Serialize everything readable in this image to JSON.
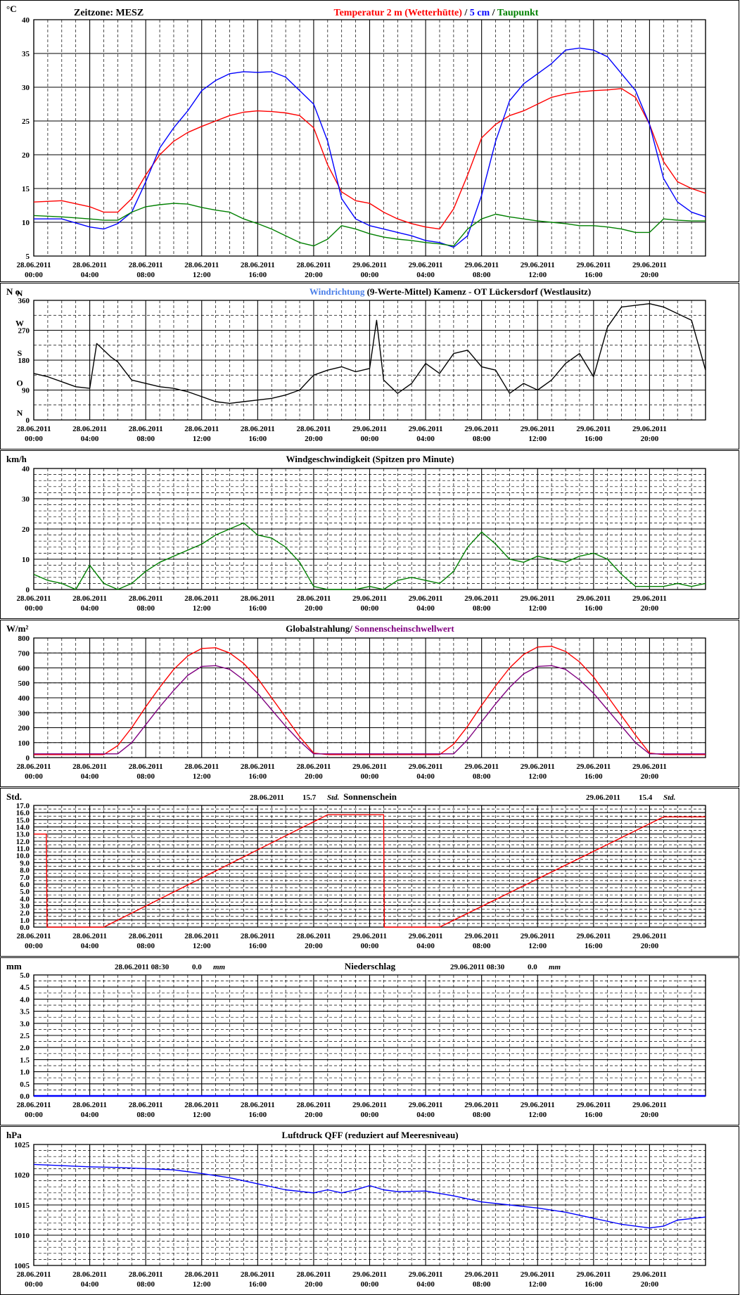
{
  "colors": {
    "red": "#ff0000",
    "blue": "#0000ff",
    "green": "#008000",
    "black": "#000000",
    "lightblue": "#4a7fe8",
    "purple": "#800080",
    "grid": "#000000"
  },
  "x_ticks": [
    [
      "28.06.2011",
      "00:00"
    ],
    [
      "28.06.2011",
      "04:00"
    ],
    [
      "28.06.2011",
      "08:00"
    ],
    [
      "28.06.2011",
      "12:00"
    ],
    [
      "28.06.2011",
      "16:00"
    ],
    [
      "28.06.2011",
      "20:00"
    ],
    [
      "29.06.2011",
      "00:00"
    ],
    [
      "29.06.2011",
      "04:00"
    ],
    [
      "29.06.2011",
      "08:00"
    ],
    [
      "29.06.2011",
      "12:00"
    ],
    [
      "29.06.2011",
      "16:00"
    ],
    [
      "29.06.2011",
      "20:00"
    ]
  ],
  "chart_data": [
    {
      "id": "temp",
      "type": "line",
      "unit_label": "°C",
      "zone_label": "Zeitzone: MESZ",
      "title_parts": [
        {
          "text": "Temperatur 2 m (Wetterhütte)",
          "color": "red"
        },
        {
          "text": "  /  ",
          "color": "black"
        },
        {
          "text": "5 cm",
          "color": "blue"
        },
        {
          "text": " / ",
          "color": "black"
        },
        {
          "text": "Taupunkt",
          "color": "green"
        }
      ],
      "ylim": [
        5,
        40
      ],
      "yticks": [
        5,
        10,
        15,
        20,
        25,
        30,
        35,
        40
      ],
      "minor": 1,
      "x_hours": [
        0,
        2,
        4,
        5,
        6,
        7,
        8,
        9,
        10,
        11,
        12,
        13,
        14,
        15,
        16,
        17,
        18,
        19,
        20,
        21,
        22,
        23,
        24,
        25,
        26,
        27,
        28,
        29,
        30,
        31,
        32,
        33,
        34,
        35,
        36,
        37,
        38,
        39,
        40,
        41,
        42,
        43,
        44,
        45,
        46,
        47,
        48
      ],
      "series": [
        {
          "color": "red",
          "values": [
            13.0,
            13.2,
            12.3,
            11.5,
            11.5,
            13.5,
            17.0,
            20.0,
            22.0,
            23.3,
            24.2,
            25.0,
            25.8,
            26.3,
            26.5,
            26.4,
            26.2,
            25.8,
            24.0,
            18.5,
            14.5,
            13.2,
            12.8,
            11.5,
            10.5,
            9.8,
            9.3,
            9.0,
            12.0,
            17.0,
            22.5,
            24.5,
            25.8,
            26.5,
            27.5,
            28.5,
            29.0,
            29.3,
            29.5,
            29.6,
            29.8,
            28.5,
            24.5,
            19.0,
            16.0,
            15.0,
            14.3
          ]
        },
        {
          "color": "blue",
          "values": [
            10.5,
            10.5,
            9.3,
            9.0,
            9.8,
            11.5,
            16.0,
            21.0,
            24.0,
            26.5,
            29.5,
            31.0,
            32.0,
            32.3,
            32.2,
            32.3,
            31.5,
            29.5,
            27.5,
            22.0,
            13.5,
            10.5,
            9.5,
            9.0,
            8.5,
            8.0,
            7.3,
            7.0,
            6.3,
            8.0,
            14.0,
            22.0,
            28.0,
            30.5,
            32.0,
            33.5,
            35.5,
            35.8,
            35.5,
            34.5,
            32.0,
            29.5,
            24.5,
            16.5,
            13.0,
            11.5,
            10.8
          ]
        },
        {
          "color": "green",
          "values": [
            11.0,
            10.8,
            10.5,
            10.3,
            10.3,
            11.5,
            12.3,
            12.6,
            12.8,
            12.7,
            12.2,
            11.8,
            11.5,
            10.5,
            9.8,
            9.0,
            8.0,
            7.0,
            6.5,
            7.5,
            9.5,
            9.0,
            8.3,
            7.8,
            7.5,
            7.3,
            7.0,
            6.8,
            6.5,
            9.0,
            10.5,
            11.2,
            10.8,
            10.5,
            10.2,
            10.0,
            9.8,
            9.5,
            9.5,
            9.3,
            9.0,
            8.5,
            8.5,
            10.5,
            10.3,
            10.2,
            10.2
          ]
        }
      ]
    },
    {
      "id": "wind_dir",
      "type": "line",
      "unit_label": "N o",
      "title_parts": [
        {
          "text": "Windrichtung",
          "color": "lightblue"
        },
        {
          "text": " (9-Werte-Mittel)",
          "color": "black"
        },
        {
          "text": "          Kamenz - OT Lückersdorf (Westlausitz)",
          "color": "black"
        }
      ],
      "ylim": [
        0,
        360
      ],
      "yticks": [
        0,
        90,
        180,
        270,
        360
      ],
      "minor": 2,
      "dir_letters": [
        {
          "label": "N",
          "value": 0
        },
        {
          "label": "O",
          "value": 90
        },
        {
          "label": "S",
          "value": 180
        },
        {
          "label": "W",
          "value": 270
        },
        {
          "label": "N",
          "value": 360
        }
      ],
      "x_hours": [
        0,
        1,
        2,
        3,
        4,
        4.5,
        5,
        5.5,
        6,
        7,
        8,
        9,
        10,
        11,
        12,
        13,
        14,
        15,
        16,
        17,
        18,
        19,
        20,
        21,
        22,
        23,
        24,
        24.5,
        25,
        26,
        27,
        28,
        29,
        30,
        31,
        32,
        33,
        34,
        35,
        36,
        37,
        38,
        39,
        40,
        41,
        42,
        43,
        44,
        45,
        46,
        47,
        48
      ],
      "series": [
        {
          "color": "black",
          "values": [
            140,
            130,
            115,
            100,
            95,
            230,
            210,
            190,
            175,
            120,
            110,
            100,
            95,
            85,
            70,
            55,
            50,
            55,
            60,
            65,
            75,
            90,
            135,
            150,
            160,
            145,
            155,
            300,
            120,
            80,
            110,
            170,
            140,
            200,
            210,
            160,
            150,
            80,
            110,
            90,
            120,
            170,
            200,
            130,
            280,
            340,
            345,
            350,
            340,
            320,
            300,
            150
          ]
        }
      ]
    },
    {
      "id": "wind_speed",
      "type": "line",
      "unit_label": "km/h",
      "title_parts": [
        {
          "text": "Windgeschwindigkeit (Spitzen pro Minute)",
          "color": "black"
        }
      ],
      "ylim": [
        0,
        40
      ],
      "yticks": [
        0,
        10,
        20,
        30,
        40
      ],
      "minor": 5,
      "x_hours": [
        0,
        1,
        2,
        3,
        4,
        5,
        6,
        7,
        8,
        9,
        10,
        11,
        12,
        13,
        14,
        15,
        16,
        17,
        18,
        19,
        20,
        21,
        22,
        23,
        24,
        25,
        26,
        27,
        28,
        29,
        30,
        31,
        32,
        33,
        34,
        35,
        36,
        37,
        38,
        39,
        40,
        41,
        42,
        43,
        44,
        45,
        46,
        47,
        48
      ],
      "series": [
        {
          "color": "green",
          "values": [
            5,
            3,
            2,
            0,
            8,
            2,
            0,
            2,
            6,
            9,
            11,
            13,
            15,
            18,
            20,
            22,
            18,
            17,
            14,
            9,
            1,
            0,
            0,
            0,
            1,
            0,
            3,
            4,
            3,
            2,
            6,
            14,
            19,
            15,
            10,
            9,
            11,
            10,
            9,
            11,
            12,
            10,
            5,
            1,
            1,
            1,
            2,
            1,
            2
          ]
        }
      ]
    },
    {
      "id": "radiation",
      "type": "line",
      "unit_label": "W/m²",
      "title_parts": [
        {
          "text": "Globalstrahlung/ ",
          "color": "black"
        },
        {
          "text": "Sonnenscheinschwellwert",
          "color": "purple"
        }
      ],
      "ylim": [
        0,
        800
      ],
      "yticks": [
        0,
        100,
        200,
        300,
        400,
        500,
        600,
        700,
        800
      ],
      "minor": 1,
      "x_hours": [
        0,
        5,
        6,
        7,
        8,
        9,
        10,
        11,
        12,
        13,
        14,
        15,
        16,
        17,
        18,
        19,
        20,
        21,
        22,
        24,
        29,
        30,
        31,
        32,
        33,
        34,
        35,
        36,
        37,
        38,
        39,
        40,
        41,
        42,
        43,
        44,
        45,
        46,
        48
      ],
      "series": [
        {
          "color": "red",
          "values": [
            20,
            20,
            80,
            200,
            340,
            470,
            590,
            680,
            730,
            735,
            700,
            630,
            530,
            400,
            270,
            140,
            30,
            20,
            20,
            20,
            20,
            90,
            210,
            350,
            480,
            600,
            690,
            740,
            745,
            710,
            640,
            540,
            410,
            280,
            150,
            30,
            20,
            20,
            20
          ]
        },
        {
          "color": "purple",
          "values": [
            25,
            25,
            25,
            100,
            220,
            340,
            450,
            550,
            610,
            615,
            590,
            520,
            430,
            320,
            210,
            110,
            25,
            25,
            25,
            25,
            25,
            25,
            120,
            240,
            360,
            470,
            560,
            610,
            615,
            590,
            520,
            430,
            320,
            210,
            100,
            25,
            25,
            25,
            25
          ]
        }
      ]
    },
    {
      "id": "sunshine",
      "type": "line",
      "unit_label": "Std.",
      "title_parts": [
        {
          "text": "Sonnenschein",
          "color": "black"
        }
      ],
      "annotations": [
        {
          "date": "28.06.2011",
          "value": "15.7",
          "unit": "Std."
        },
        {
          "date": "29.06.2011",
          "value": "15.4",
          "unit": "Std."
        }
      ],
      "ylim": [
        0,
        17
      ],
      "yticks": [
        0,
        1,
        2,
        3,
        4,
        5,
        6,
        7,
        8,
        9,
        10,
        11,
        12,
        13,
        14,
        15,
        16,
        17
      ],
      "minor": 2,
      "x_hours": [
        0,
        0.9,
        0.95,
        5,
        21,
        25,
        25.05,
        29,
        45,
        48
      ],
      "series": [
        {
          "color": "red",
          "values": [
            13.0,
            13.0,
            0.0,
            0.0,
            15.7,
            15.7,
            0.0,
            0.0,
            15.4,
            15.4
          ]
        }
      ]
    },
    {
      "id": "precip",
      "type": "line",
      "unit_label": "mm",
      "title_parts": [
        {
          "text": "Niederschlag",
          "color": "black"
        }
      ],
      "annotations": [
        {
          "date": "28.06.2011 08:30",
          "value": "0.0",
          "unit": "mm"
        },
        {
          "date": "29.06.2011 08:30",
          "value": "0.0",
          "unit": "mm"
        }
      ],
      "ylim": [
        0,
        5
      ],
      "yticks": [
        0.0,
        0.5,
        1.0,
        1.5,
        2.0,
        2.5,
        3.0,
        3.5,
        4.0,
        4.5,
        5.0
      ],
      "minor": 2,
      "x_hours": [
        0,
        48
      ],
      "series": [
        {
          "color": "blue",
          "values": [
            0,
            0
          ]
        }
      ]
    },
    {
      "id": "pressure",
      "type": "line",
      "unit_label": "hPa",
      "title_parts": [
        {
          "text": "Luftdruck QFF (reduziert auf Meeresniveau)",
          "color": "black"
        }
      ],
      "ylim": [
        1005,
        1025
      ],
      "yticks": [
        1005,
        1010,
        1015,
        1020,
        1025
      ],
      "minor": 5,
      "x_hours": [
        0,
        2,
        4,
        6,
        8,
        10,
        12,
        14,
        16,
        18,
        20,
        21,
        22,
        23,
        24,
        25,
        26,
        28,
        30,
        32,
        34,
        36,
        38,
        40,
        42,
        44,
        45,
        46,
        48
      ],
      "series": [
        {
          "color": "blue",
          "values": [
            1021.7,
            1021.5,
            1021.3,
            1021.2,
            1021.0,
            1020.8,
            1020.2,
            1019.5,
            1018.5,
            1017.5,
            1017.0,
            1017.5,
            1017.0,
            1017.5,
            1018.2,
            1017.5,
            1017.2,
            1017.3,
            1016.5,
            1015.5,
            1015.0,
            1014.5,
            1013.8,
            1012.8,
            1011.8,
            1011.2,
            1011.5,
            1012.5,
            1013.0
          ]
        }
      ]
    }
  ]
}
